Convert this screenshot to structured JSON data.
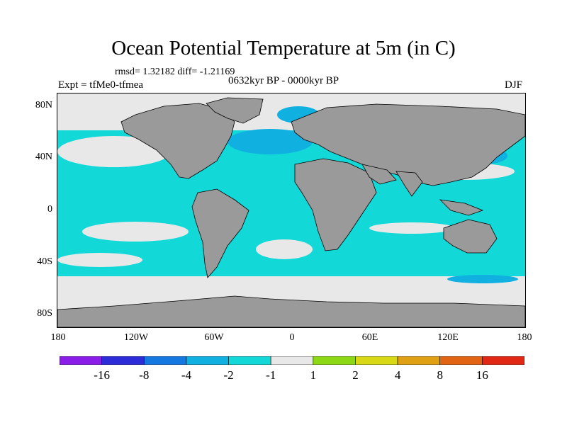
{
  "plot": {
    "title": "Ocean Potential Temperature at 5m (in C)",
    "stats": "rmsd= 1.32182 diff= -1.21169",
    "experiment": "Expt = tfMe0-tfmea",
    "period": "0632kyr BP - 0000kyr BP",
    "season": "DJF"
  },
  "axes": {
    "y_ticks": [
      "80N",
      "40N",
      "0",
      "40S",
      "80S"
    ],
    "x_ticks": [
      "180",
      "120W",
      "60W",
      "0",
      "60E",
      "120E",
      "180"
    ]
  },
  "colorbar": {
    "colors": [
      "#8a1ee8",
      "#2c2cd8",
      "#1478e0",
      "#10b0e0",
      "#12d8d8",
      "#e8e8e8",
      "#8cd814",
      "#d8d814",
      "#e0a014",
      "#e06414",
      "#e02814"
    ],
    "labels": [
      "-16",
      "-8",
      "-4",
      "-2",
      "-1",
      "1",
      "2",
      "4",
      "8",
      "16"
    ]
  },
  "map_colors": {
    "land": "#9a9a9a",
    "ocean_cool": "#12d8d8",
    "ocean_neutral": "#e8e8e8",
    "ocean_colder": "#10b0e0"
  }
}
